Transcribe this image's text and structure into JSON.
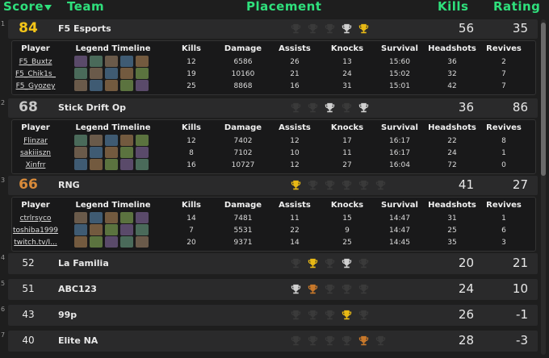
{
  "header": {
    "columns": [
      "Score",
      "Team",
      "Placement",
      "Kills",
      "Rating"
    ]
  },
  "player_columns": [
    "Player",
    "Legend Timeline",
    "Kills",
    "Damage",
    "Assists",
    "Knocks",
    "Survival",
    "Headshots",
    "Revives"
  ],
  "teams": [
    {
      "rank": 1,
      "score": 84,
      "score_color": "#f5c518",
      "name": "F5 Esports",
      "placement_colors": [
        "#3a3a3a",
        "#3a3a3a",
        "#3a3a3a",
        "#d0d0d0",
        "#e8b915"
      ],
      "kills": 56,
      "rating": 35,
      "players": [
        [
          "F5_Buxtz",
          12,
          6586,
          26,
          13,
          "15:60",
          36,
          2
        ],
        [
          "F5_Chik1s_",
          19,
          10160,
          21,
          24,
          "15:02",
          32,
          7
        ],
        [
          "F5_Gyozey",
          25,
          8868,
          16,
          31,
          "15:01",
          42,
          7
        ]
      ]
    },
    {
      "rank": 2,
      "score": 68,
      "score_color": "#c8c8c8",
      "name": "Stick Drift Op",
      "placement_colors": [
        "#3a3a3a",
        "#3a3a3a",
        "#d0d0d0",
        "#3a3a3a",
        "#d0d0d0"
      ],
      "kills": 36,
      "rating": 86,
      "players": [
        [
          "Flinzar",
          12,
          7402,
          12,
          17,
          "16:17",
          22,
          8
        ],
        [
          "sakiiiszn",
          8,
          7102,
          10,
          11,
          "16:17",
          24,
          1
        ],
        [
          "Xinfrr",
          16,
          10727,
          12,
          27,
          "16:04",
          72,
          0
        ]
      ]
    },
    {
      "rank": 3,
      "score": 66,
      "score_color": "#d98b3a",
      "name": "RNG",
      "placement_colors": [
        "#e8b915",
        "#3a3a3a",
        "#3a3a3a",
        "#3a3a3a",
        "#3a3a3a",
        "#3a3a3a"
      ],
      "kills": 41,
      "rating": 27,
      "players": [
        [
          "ctrlrsyco",
          14,
          7481,
          11,
          15,
          "14:47",
          31,
          1
        ],
        [
          "toshiba1999",
          7,
          5531,
          22,
          9,
          "14:47",
          25,
          6
        ],
        [
          "twitch.tv/I...",
          20,
          9371,
          14,
          25,
          "14:45",
          35,
          3
        ]
      ]
    },
    {
      "rank": 4,
      "score": 52,
      "score_color": "#e8e8e8",
      "name": "La Familia",
      "placement_colors": [
        "#3a3a3a",
        "#e8b915",
        "#3a3a3a",
        "#d0d0d0",
        "#3a3a3a"
      ],
      "kills": 20,
      "rating": 21
    },
    {
      "rank": 5,
      "score": 51,
      "score_color": "#e8e8e8",
      "name": "ABC123",
      "placement_colors": [
        "#d0d0d0",
        "#c8782a",
        "#3a3a3a",
        "#3a3a3a",
        "#3a3a3a"
      ],
      "kills": 24,
      "rating": 10
    },
    {
      "rank": 6,
      "score": 43,
      "score_color": "#e8e8e8",
      "name": "99p",
      "placement_colors": [
        "#3a3a3a",
        "#3a3a3a",
        "#3a3a3a",
        "#e8b915",
        "#3a3a3a"
      ],
      "kills": 26,
      "rating": -1
    },
    {
      "rank": 7,
      "score": 40,
      "score_color": "#e8e8e8",
      "name": "Elite NA",
      "placement_colors": [
        "#3a3a3a",
        "#3a3a3a",
        "#3a3a3a",
        "#3a3a3a",
        "#c8782a",
        "#3a3a3a"
      ],
      "kills": 28,
      "rating": -3
    }
  ]
}
